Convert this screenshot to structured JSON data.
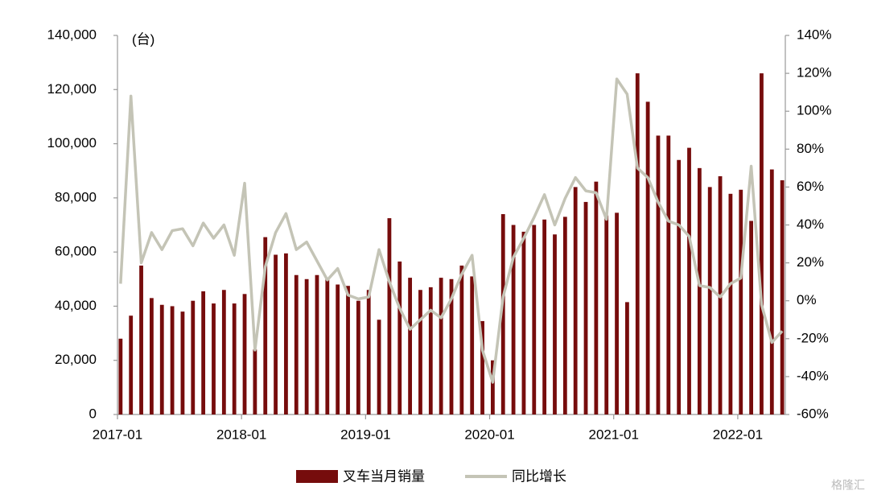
{
  "chart_data": {
    "type": "bar_line",
    "annotations": [
      "(台)",
      "格隆汇"
    ],
    "categories": [
      "2017-01",
      null,
      null,
      null,
      null,
      null,
      null,
      null,
      null,
      null,
      null,
      null,
      "2018-01",
      null,
      null,
      null,
      null,
      null,
      null,
      null,
      null,
      null,
      null,
      null,
      "2019-01",
      null,
      null,
      null,
      null,
      null,
      null,
      null,
      null,
      null,
      null,
      null,
      "2020-01",
      null,
      null,
      null,
      null,
      null,
      null,
      null,
      null,
      null,
      null,
      null,
      "2021-01",
      null,
      null,
      null,
      null,
      null,
      null,
      null,
      null,
      null,
      null,
      null,
      "2022-01",
      null,
      null,
      null,
      null
    ],
    "series": [
      {
        "name": "叉车当月销量",
        "type": "bar",
        "color": "#760c0c",
        "values": [
          28000,
          36500,
          55000,
          43000,
          40500,
          40000,
          38000,
          42000,
          45500,
          41000,
          46000,
          41000,
          44500,
          24000,
          65500,
          59000,
          59500,
          51500,
          50000,
          51500,
          50500,
          48000,
          47500,
          42000,
          46000,
          35000,
          72500,
          56500,
          50500,
          46000,
          47000,
          50500,
          50000,
          55000,
          51000,
          34500,
          20000,
          74000,
          70000,
          67500,
          70000,
          72000,
          66500,
          73000,
          84000,
          78500,
          86000,
          73500,
          74500,
          41500,
          126000,
          115500,
          103000,
          103000,
          94000,
          98500,
          91000,
          84000,
          88000,
          81500,
          83000,
          71500,
          126000,
          90500,
          86500
        ]
      },
      {
        "name": "同比增长",
        "type": "line",
        "axis": "y2",
        "color": "#c4c4b6",
        "values": [
          9,
          108,
          20,
          36,
          27,
          37,
          38,
          29,
          41,
          33,
          40,
          24,
          62,
          -26,
          18,
          36,
          46,
          27,
          31,
          21,
          11,
          17,
          3,
          1,
          2,
          27,
          10,
          -4,
          -15,
          -10,
          -5,
          -9,
          1,
          14,
          24,
          -26,
          -43,
          2,
          23,
          33,
          44,
          56,
          40,
          54,
          65,
          58,
          57,
          43,
          117,
          109,
          70,
          65,
          52,
          42,
          40,
          34,
          8,
          7,
          2,
          9,
          12,
          71,
          -2,
          -22,
          -16
        ]
      }
    ],
    "ylim": [
      0,
      140000
    ],
    "yticks": [
      0,
      {
        "value": 20000,
        "label": "20,000"
      },
      {
        "value": 40000,
        "label": "40,000"
      },
      {
        "value": 60000,
        "label": "60,000"
      },
      {
        "value": 80000,
        "label": "80,000"
      },
      {
        "value": 100000,
        "label": "100,000"
      },
      {
        "value": 120000,
        "label": "120,000"
      },
      {
        "value": 140000,
        "label": "140,000"
      }
    ],
    "y2lim": [
      -60,
      140
    ],
    "y2ticks": [
      {
        "value": -60,
        "label": "-60%"
      },
      {
        "value": -40,
        "label": "-40%"
      },
      {
        "value": -20,
        "label": "-20%"
      },
      {
        "value": 0,
        "label": "0%"
      },
      {
        "value": 20,
        "label": "20%"
      },
      {
        "value": 40,
        "label": "40%"
      },
      {
        "value": 60,
        "label": "60%"
      },
      {
        "value": 80,
        "label": "80%"
      },
      {
        "value": 100,
        "label": "100%"
      },
      {
        "value": 120,
        "label": "120%"
      },
      {
        "value": 140,
        "label": "140%"
      }
    ],
    "legend": "bottom"
  }
}
